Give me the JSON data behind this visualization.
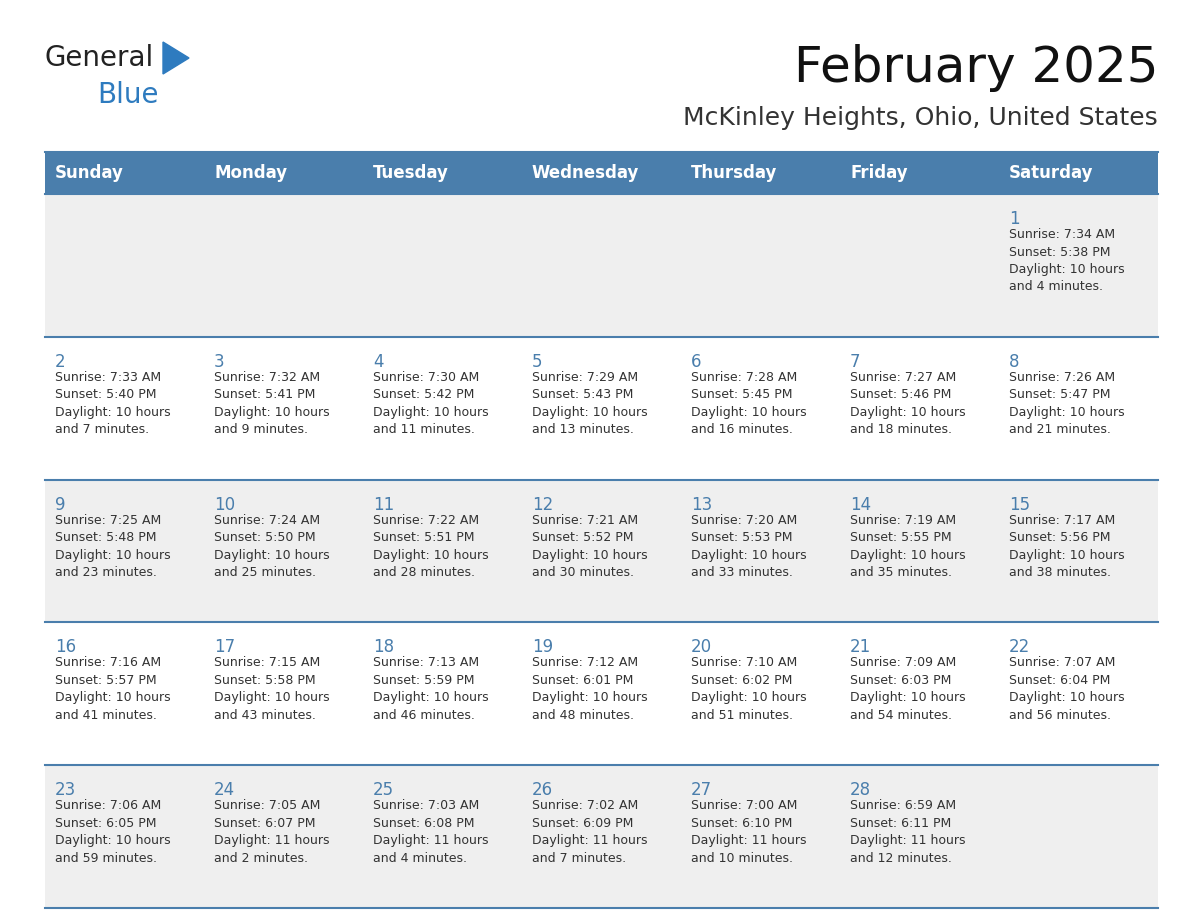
{
  "title": "February 2025",
  "subtitle": "McKinley Heights, Ohio, United States",
  "header_color": "#4a7eac",
  "header_text_color": "#ffffff",
  "day_names": [
    "Sunday",
    "Monday",
    "Tuesday",
    "Wednesday",
    "Thursday",
    "Friday",
    "Saturday"
  ],
  "bg_color": "#ffffff",
  "cell_bg_light": "#efefef",
  "cell_bg_white": "#ffffff",
  "line_color": "#4a7eac",
  "day_num_color": "#4a7eac",
  "info_color": "#333333",
  "logo_general_color": "#222222",
  "logo_blue_color": "#2e7bbf",
  "weeks": [
    [
      {
        "day": 0,
        "info": ""
      },
      {
        "day": 0,
        "info": ""
      },
      {
        "day": 0,
        "info": ""
      },
      {
        "day": 0,
        "info": ""
      },
      {
        "day": 0,
        "info": ""
      },
      {
        "day": 0,
        "info": ""
      },
      {
        "day": 1,
        "info": "Sunrise: 7:34 AM\nSunset: 5:38 PM\nDaylight: 10 hours\nand 4 minutes."
      }
    ],
    [
      {
        "day": 2,
        "info": "Sunrise: 7:33 AM\nSunset: 5:40 PM\nDaylight: 10 hours\nand 7 minutes."
      },
      {
        "day": 3,
        "info": "Sunrise: 7:32 AM\nSunset: 5:41 PM\nDaylight: 10 hours\nand 9 minutes."
      },
      {
        "day": 4,
        "info": "Sunrise: 7:30 AM\nSunset: 5:42 PM\nDaylight: 10 hours\nand 11 minutes."
      },
      {
        "day": 5,
        "info": "Sunrise: 7:29 AM\nSunset: 5:43 PM\nDaylight: 10 hours\nand 13 minutes."
      },
      {
        "day": 6,
        "info": "Sunrise: 7:28 AM\nSunset: 5:45 PM\nDaylight: 10 hours\nand 16 minutes."
      },
      {
        "day": 7,
        "info": "Sunrise: 7:27 AM\nSunset: 5:46 PM\nDaylight: 10 hours\nand 18 minutes."
      },
      {
        "day": 8,
        "info": "Sunrise: 7:26 AM\nSunset: 5:47 PM\nDaylight: 10 hours\nand 21 minutes."
      }
    ],
    [
      {
        "day": 9,
        "info": "Sunrise: 7:25 AM\nSunset: 5:48 PM\nDaylight: 10 hours\nand 23 minutes."
      },
      {
        "day": 10,
        "info": "Sunrise: 7:24 AM\nSunset: 5:50 PM\nDaylight: 10 hours\nand 25 minutes."
      },
      {
        "day": 11,
        "info": "Sunrise: 7:22 AM\nSunset: 5:51 PM\nDaylight: 10 hours\nand 28 minutes."
      },
      {
        "day": 12,
        "info": "Sunrise: 7:21 AM\nSunset: 5:52 PM\nDaylight: 10 hours\nand 30 minutes."
      },
      {
        "day": 13,
        "info": "Sunrise: 7:20 AM\nSunset: 5:53 PM\nDaylight: 10 hours\nand 33 minutes."
      },
      {
        "day": 14,
        "info": "Sunrise: 7:19 AM\nSunset: 5:55 PM\nDaylight: 10 hours\nand 35 minutes."
      },
      {
        "day": 15,
        "info": "Sunrise: 7:17 AM\nSunset: 5:56 PM\nDaylight: 10 hours\nand 38 minutes."
      }
    ],
    [
      {
        "day": 16,
        "info": "Sunrise: 7:16 AM\nSunset: 5:57 PM\nDaylight: 10 hours\nand 41 minutes."
      },
      {
        "day": 17,
        "info": "Sunrise: 7:15 AM\nSunset: 5:58 PM\nDaylight: 10 hours\nand 43 minutes."
      },
      {
        "day": 18,
        "info": "Sunrise: 7:13 AM\nSunset: 5:59 PM\nDaylight: 10 hours\nand 46 minutes."
      },
      {
        "day": 19,
        "info": "Sunrise: 7:12 AM\nSunset: 6:01 PM\nDaylight: 10 hours\nand 48 minutes."
      },
      {
        "day": 20,
        "info": "Sunrise: 7:10 AM\nSunset: 6:02 PM\nDaylight: 10 hours\nand 51 minutes."
      },
      {
        "day": 21,
        "info": "Sunrise: 7:09 AM\nSunset: 6:03 PM\nDaylight: 10 hours\nand 54 minutes."
      },
      {
        "day": 22,
        "info": "Sunrise: 7:07 AM\nSunset: 6:04 PM\nDaylight: 10 hours\nand 56 minutes."
      }
    ],
    [
      {
        "day": 23,
        "info": "Sunrise: 7:06 AM\nSunset: 6:05 PM\nDaylight: 10 hours\nand 59 minutes."
      },
      {
        "day": 24,
        "info": "Sunrise: 7:05 AM\nSunset: 6:07 PM\nDaylight: 11 hours\nand 2 minutes."
      },
      {
        "day": 25,
        "info": "Sunrise: 7:03 AM\nSunset: 6:08 PM\nDaylight: 11 hours\nand 4 minutes."
      },
      {
        "day": 26,
        "info": "Sunrise: 7:02 AM\nSunset: 6:09 PM\nDaylight: 11 hours\nand 7 minutes."
      },
      {
        "day": 27,
        "info": "Sunrise: 7:00 AM\nSunset: 6:10 PM\nDaylight: 11 hours\nand 10 minutes."
      },
      {
        "day": 28,
        "info": "Sunrise: 6:59 AM\nSunset: 6:11 PM\nDaylight: 11 hours\nand 12 minutes."
      },
      {
        "day": 0,
        "info": ""
      }
    ]
  ]
}
